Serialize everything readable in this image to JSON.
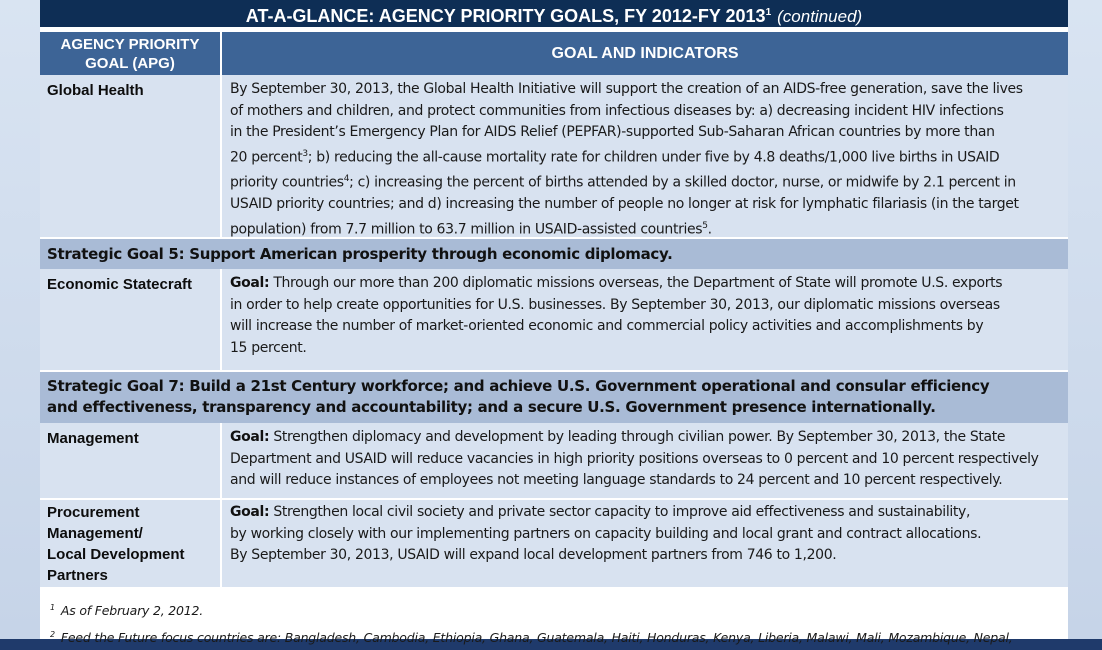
{
  "title": {
    "main": "AT-A-GLANCE:  AGENCY PRIORITY GOALS, FY 2012-FY 2013",
    "sup": "1",
    "continued": "(continued)"
  },
  "table": {
    "header": {
      "col1_line1": "AGENCY PRIORITY",
      "col1_line2": "GOAL (APG)",
      "col2": "GOAL AND INDICATORS"
    },
    "rows": [
      {
        "label": "Global Health",
        "lines": [
          "By September 30, 2013, the Global Health Initiative will support the creation of an AIDS-free generation, save the lives",
          "of mothers and children, and protect communities from infectious diseases by:  a) decreasing incident HIV infections",
          "in the President’s Emergency Plan for AIDS Relief (PEPFAR)-supported Sub-Saharan African countries by more than",
          "20 percent",
          "; b) reducing the all-cause mortality rate for children under five by 4.8 deaths/1,000 live births in USAID",
          "priority countries",
          "; c) increasing the percent of births attended by a skilled doctor, nurse, or midwife by 2.1 percent in",
          "USAID priority countries; and d) increasing the number of people no longer at risk for lymphatic filariasis (in the target",
          "population) from 7.7 million to 63.7 million in USAID-assisted countries",
          "."
        ],
        "sups": [
          "3",
          "4",
          "5"
        ]
      },
      {
        "strategic": "Strategic Goal 5:  Support American prosperity through economic diplomacy."
      },
      {
        "label": "Economic Statecraft",
        "goal_label": "Goal:",
        "lines": [
          "  Through our more than 200 diplomatic missions overseas, the Department of State will promote U.S. exports",
          "in order to help create opportunities for U.S. businesses. By September 30, 2013, our diplomatic missions overseas",
          "will increase the number of market-oriented economic and commercial policy activities and accomplishments by",
          "15 percent."
        ]
      },
      {
        "strategic_line1": "Strategic Goal 7:  Build a 21st Century workforce; and achieve U.S. Government operational and consular efficiency",
        "strategic_line2": "and effectiveness, transparency and accountability; and a secure U.S. Government presence internationally."
      },
      {
        "label": "Management",
        "goal_label": "Goal:",
        "lines": [
          "  Strengthen diplomacy and development by leading through civilian power. By September 30, 2013, the State",
          "Department and USAID will reduce vacancies in high priority positions overseas to 0 percent and 10 percent respectively",
          "and will reduce instances of employees not meeting language standards to 24 percent and 10 percent respectively."
        ]
      },
      {
        "label_lines": [
          "Procurement",
          "Management/",
          "Local Development",
          "Partners"
        ],
        "goal_label": "Goal:",
        "lines": [
          "  Strengthen local civil society and private sector capacity to improve aid effectiveness and sustainability,",
          "by working closely with our implementing partners on capacity building and local grant and contract allocations.",
          "By September 30, 2013, USAID will expand local development partners from 746 to 1,200."
        ]
      }
    ]
  },
  "footnotes": [
    {
      "num": "1",
      "text": "As of February 2, 2012."
    },
    {
      "num": "2",
      "text": "Feed the Future focus countries are:  Bangladesh, Cambodia, Ethiopia, Ghana, Guatemala, Haiti, Honduras, Kenya, Liberia, Malawi, Mali, Mozambique, Nepal,"
    }
  ]
}
